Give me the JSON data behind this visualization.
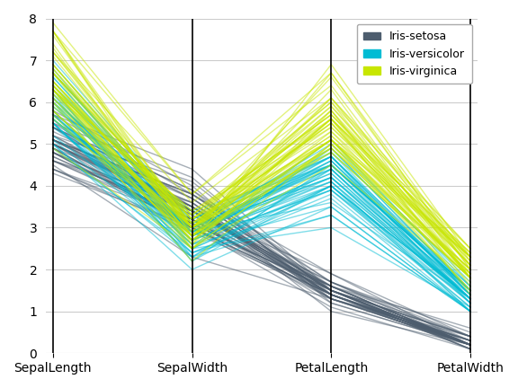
{
  "columns": [
    "SepalLength",
    "SepalWidth",
    "PetalLength",
    "PetalWidth"
  ],
  "classes": [
    "Iris-setosa",
    "Iris-versicolor",
    "Iris-virginica"
  ],
  "colors": {
    "Iris-setosa": "#4d5d6e",
    "Iris-versicolor": "#00bcd4",
    "Iris-virginica": "#c8e600"
  },
  "alpha": 0.5,
  "linewidth": 1.0,
  "ylim": [
    0,
    8
  ],
  "yticks": [
    0,
    1,
    2,
    3,
    4,
    5,
    6,
    7,
    8
  ],
  "background_color": "#ffffff",
  "grid_color": "#cccccc"
}
